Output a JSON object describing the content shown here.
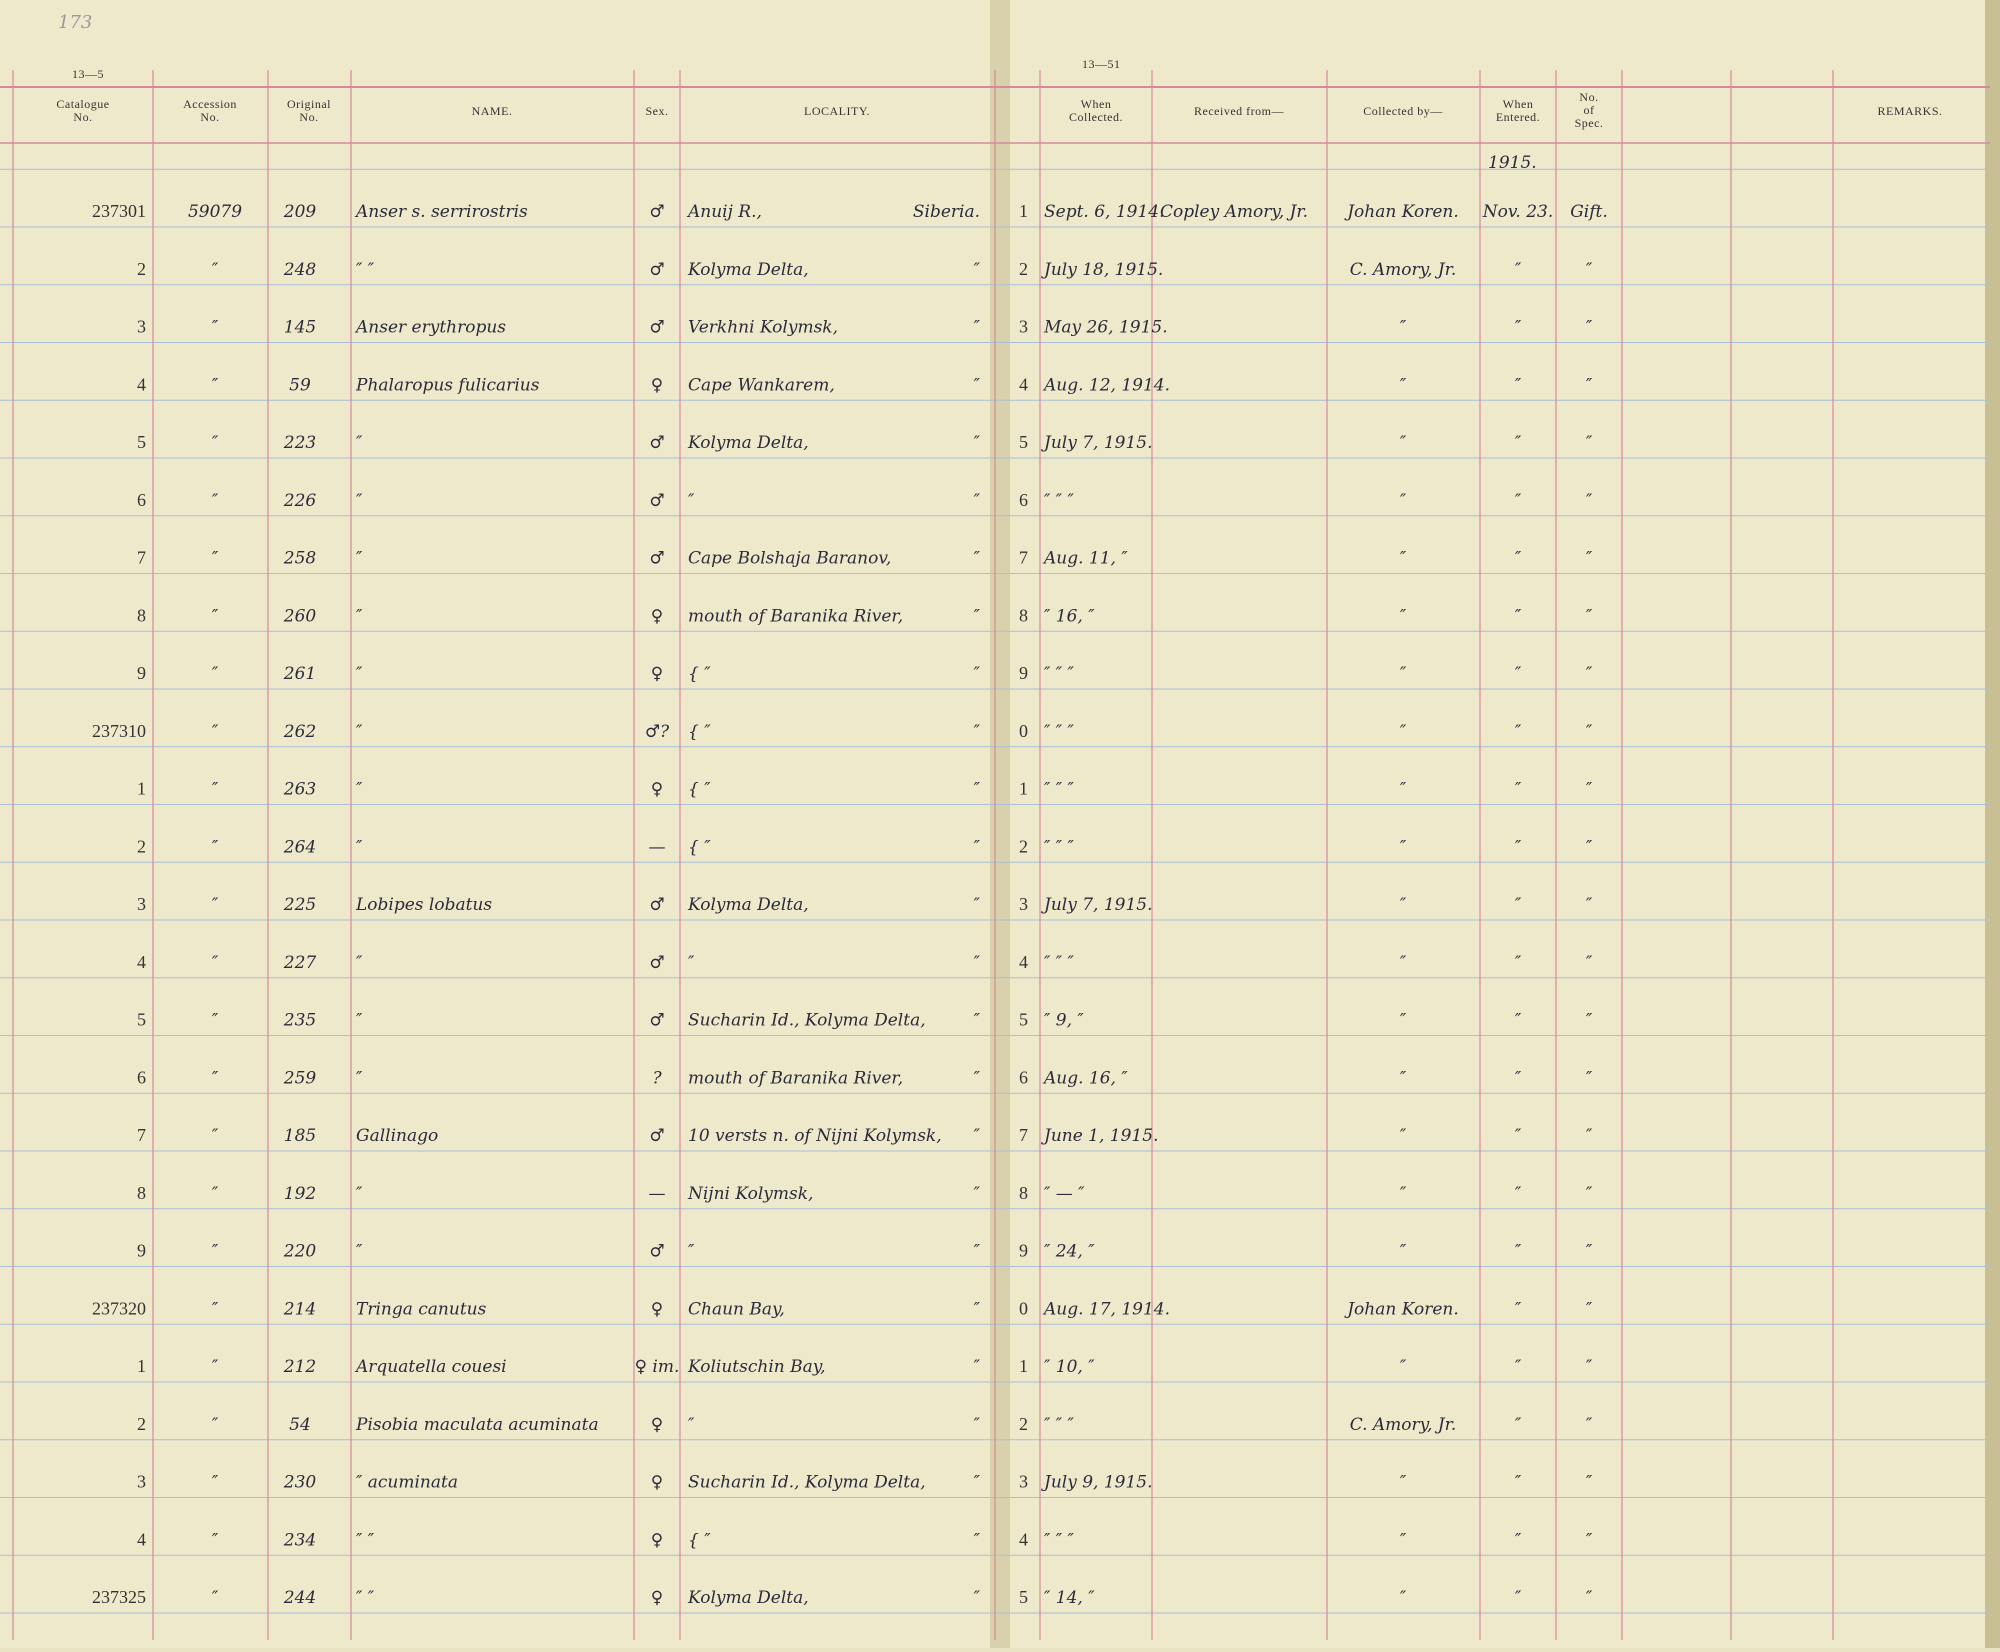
{
  "page_number": "173",
  "form_left": "13—5",
  "form_right": "13—51",
  "year_note": "1915.",
  "headers": {
    "catalogue": [
      "Catalogue",
      "No."
    ],
    "accession": [
      "Accession",
      "No."
    ],
    "original": [
      "Original",
      "No."
    ],
    "name": [
      "NAME."
    ],
    "sex": [
      "Sex."
    ],
    "locality": [
      "LOCALITY."
    ],
    "collected": [
      "When",
      "Collected."
    ],
    "received_from": [
      "Received from—"
    ],
    "collected_by": [
      "Collected by—"
    ],
    "entered": [
      "When",
      "Entered."
    ],
    "specimens": [
      "No.",
      "of",
      "Spec."
    ],
    "remarks": [
      "REMARKS."
    ]
  },
  "rows": [
    {
      "catalogue": "237301",
      "accession": "59079",
      "original": "209",
      "name": "Anser s. serrirostris",
      "sex": "♂",
      "locality": "Anuij R.,",
      "region": "Siberia.",
      "line": "1",
      "collected": "Sept. 6, 1914.",
      "received_from": "Copley Amory, Jr.",
      "collected_by": "Johan Koren.",
      "entered": "Nov. 23.",
      "specimens": "Gift."
    },
    {
      "catalogue": "2",
      "accession": "″",
      "original": "248",
      "name": "″ ″",
      "sex": "♂",
      "locality": "Kolyma Delta,",
      "region": "″",
      "line": "2",
      "collected": "July 18, 1915.",
      "collected_by": "C. Amory, Jr.",
      "entered": "″",
      "specimens": "″"
    },
    {
      "catalogue": "3",
      "accession": "″",
      "original": "145",
      "name": "Anser erythropus",
      "sex": "♂",
      "locality": "Verkhni Kolymsk,",
      "region": "″",
      "line": "3",
      "collected": "May 26, 1915.",
      "collected_by": "″",
      "entered": "″",
      "specimens": "″"
    },
    {
      "catalogue": "4",
      "accession": "″",
      "original": "59",
      "name": "Phalaropus fulicarius",
      "sex": "♀",
      "locality": "Cape Wankarem,",
      "region": "″",
      "line": "4",
      "collected": "Aug. 12, 1914.",
      "collected_by": "″",
      "entered": "″",
      "specimens": "″"
    },
    {
      "catalogue": "5",
      "accession": "″",
      "original": "223",
      "name": "″",
      "sex": "♂",
      "locality": "Kolyma Delta,",
      "region": "″",
      "line": "5",
      "collected": "July 7, 1915.",
      "collected_by": "″",
      "entered": "″",
      "specimens": "″"
    },
    {
      "catalogue": "6",
      "accession": "″",
      "original": "226",
      "name": "″",
      "sex": "♂",
      "locality": "″",
      "region": "″",
      "line": "6",
      "collected": "″ ″ ″",
      "collected_by": "″",
      "entered": "″",
      "specimens": "″"
    },
    {
      "catalogue": "7",
      "accession": "″",
      "original": "258",
      "name": "″",
      "sex": "♂",
      "locality": "Cape Bolshaja Baranov,",
      "region": "″",
      "line": "7",
      "collected": "Aug. 11, ″",
      "collected_by": "″",
      "entered": "″",
      "specimens": "″"
    },
    {
      "catalogue": "8",
      "accession": "″",
      "original": "260",
      "name": "″",
      "sex": "♀",
      "locality": "mouth of Baranika River,",
      "region": "″",
      "line": "8",
      "collected": "″ 16, ″",
      "collected_by": "″",
      "entered": "″",
      "specimens": "″"
    },
    {
      "catalogue": "9",
      "accession": "″",
      "original": "261",
      "name": "″",
      "sex": "♀",
      "locality": "{ ″",
      "region": "″",
      "line": "9",
      "collected": "″ ″ ″",
      "collected_by": "″",
      "entered": "″",
      "specimens": "″"
    },
    {
      "catalogue": "237310",
      "accession": "″",
      "original": "262",
      "name": "″",
      "sex": "♂?",
      "locality": "{ ″",
      "region": "″",
      "line": "0",
      "collected": "″ ″ ″",
      "collected_by": "″",
      "entered": "″",
      "specimens": "″"
    },
    {
      "catalogue": "1",
      "accession": "″",
      "original": "263",
      "name": "″",
      "sex": "♀",
      "locality": "{ ″",
      "region": "″",
      "line": "1",
      "collected": "″ ″ ″",
      "collected_by": "″",
      "entered": "″",
      "specimens": "″"
    },
    {
      "catalogue": "2",
      "accession": "″",
      "original": "264",
      "name": "″",
      "sex": "—",
      "locality": "{ ″",
      "region": "″",
      "line": "2",
      "collected": "″ ″ ″",
      "collected_by": "″",
      "entered": "″",
      "specimens": "″"
    },
    {
      "catalogue": "3",
      "accession": "″",
      "original": "225",
      "name": "Lobipes lobatus",
      "sex": "♂",
      "locality": "Kolyma Delta,",
      "region": "″",
      "line": "3",
      "collected": "July 7, 1915.",
      "collected_by": "″",
      "entered": "″",
      "specimens": "″"
    },
    {
      "catalogue": "4",
      "accession": "″",
      "original": "227",
      "name": "″",
      "sex": "♂",
      "locality": "″",
      "region": "″",
      "line": "4",
      "collected": "″ ″ ″",
      "collected_by": "″",
      "entered": "″",
      "specimens": "″"
    },
    {
      "catalogue": "5",
      "accession": "″",
      "original": "235",
      "name": "″",
      "sex": "♂",
      "locality": "Sucharin Id., Kolyma Delta,",
      "region": "″",
      "line": "5",
      "collected": "″ 9, ″",
      "collected_by": "″",
      "entered": "″",
      "specimens": "″"
    },
    {
      "catalogue": "6",
      "accession": "″",
      "original": "259",
      "name": "″",
      "sex": "?",
      "locality": "mouth of Baranika River,",
      "region": "″",
      "line": "6",
      "collected": "Aug. 16, ″",
      "collected_by": "″",
      "entered": "″",
      "specimens": "″"
    },
    {
      "catalogue": "7",
      "accession": "″",
      "original": "185",
      "name": "Gallinago",
      "sex": "♂",
      "locality": "10 versts n. of Nijni Kolymsk,",
      "region": "″",
      "line": "7",
      "collected": "June 1, 1915.",
      "collected_by": "″",
      "entered": "″",
      "specimens": "″"
    },
    {
      "catalogue": "8",
      "accession": "″",
      "original": "192",
      "name": "″",
      "sex": "—",
      "locality": "Nijni Kolymsk,",
      "region": "″",
      "line": "8",
      "collected": "″ — ″",
      "collected_by": "″",
      "entered": "″",
      "specimens": "″"
    },
    {
      "catalogue": "9",
      "accession": "″",
      "original": "220",
      "name": "″",
      "sex": "♂",
      "locality": "″",
      "region": "″",
      "line": "9",
      "collected": "″ 24, ″",
      "collected_by": "″",
      "entered": "″",
      "specimens": "″"
    },
    {
      "catalogue": "237320",
      "accession": "″",
      "original": "214",
      "name": "Tringa canutus",
      "sex": "♀",
      "locality": "Chaun Bay,",
      "region": "″",
      "line": "0",
      "collected": "Aug. 17, 1914.",
      "collected_by": "Johan Koren.",
      "entered": "″",
      "specimens": "″"
    },
    {
      "catalogue": "1",
      "accession": "″",
      "original": "212",
      "name": "Arquatella couesi",
      "sex": "♀ im.",
      "locality": "Koliutschin Bay,",
      "region": "″",
      "line": "1",
      "collected": "″ 10, ″",
      "collected_by": "″",
      "entered": "″",
      "specimens": "″"
    },
    {
      "catalogue": "2",
      "accession": "″",
      "original": "54",
      "name": "Pisobia maculata acuminata",
      "sex": "♀",
      "locality": "″",
      "region": "″",
      "line": "2",
      "collected": "″ ″ ″",
      "collected_by": "C. Amory, Jr.",
      "entered": "″",
      "specimens": "″"
    },
    {
      "catalogue": "3",
      "accession": "″",
      "original": "230",
      "name": "″ acuminata",
      "sex": "♀",
      "locality": "Sucharin Id., Kolyma Delta,",
      "region": "″",
      "line": "3",
      "collected": "July 9, 1915.",
      "collected_by": "″",
      "entered": "″",
      "specimens": "″"
    },
    {
      "catalogue": "4",
      "accession": "″",
      "original": "234",
      "name": "″ ″",
      "sex": "♀",
      "locality": "{ ″",
      "region": "″",
      "line": "4",
      "collected": "″ ″ ″",
      "collected_by": "″",
      "entered": "″",
      "specimens": "″"
    },
    {
      "catalogue": "237325",
      "accession": "″",
      "original": "244",
      "name": "″ ″",
      "sex": "♀",
      "locality": "Kolyma Delta,",
      "region": "″",
      "line": "5",
      "collected": "″ 14, ″",
      "collected_by": "″",
      "entered": "″",
      "specimens": "″"
    }
  ]
}
